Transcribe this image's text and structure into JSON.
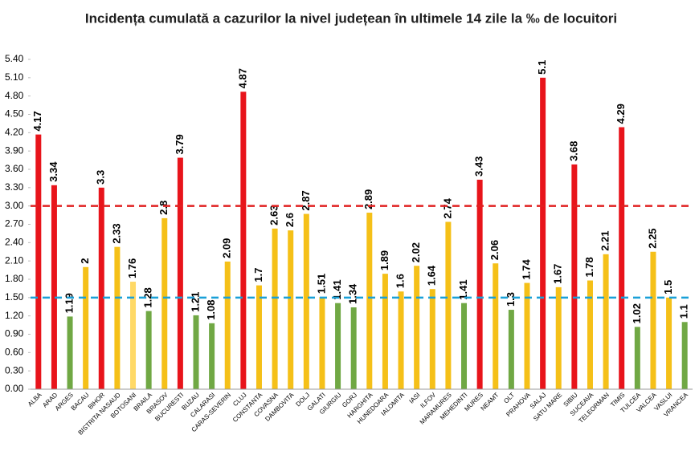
{
  "chart_data": {
    "type": "bar",
    "title": "Incidența cumulată a cazurilor la nivel județean în ultimele 14 zile la ‰ de locuitori",
    "categories": [
      "ALBA",
      "ARAD",
      "ARGES",
      "BACAU",
      "BIHOR",
      "BISTRITA NASAUD",
      "BOTOSANI",
      "BRAILA",
      "BRASOV",
      "BUCURESTI",
      "BUZAU",
      "CALARASI",
      "CARAS-SEVERIN",
      "CLUJ",
      "CONSTANTA",
      "COVASNA",
      "DAMBOVITA",
      "DOLJ",
      "GALATI",
      "GIURGIU",
      "GORJ",
      "HARGHITA",
      "HUNEDOARA",
      "IALOMITA",
      "IASI",
      "ILFOV",
      "MARAMURES",
      "MEHEDINTI",
      "MURES",
      "NEAMT",
      "OLT",
      "PRAHOVA",
      "SALAJ",
      "SATU MARE",
      "SIBIU",
      "SUCEAVA",
      "TELEORMAN",
      "TIMIS",
      "TULCEA",
      "VALCEA",
      "VASLUI",
      "VRANCEA"
    ],
    "values": [
      4.17,
      3.34,
      1.19,
      2,
      3.3,
      2.33,
      1.76,
      1.28,
      2.8,
      3.79,
      1.21,
      1.08,
      2.09,
      4.87,
      1.7,
      2.63,
      2.6,
      2.87,
      1.51,
      1.41,
      1.34,
      2.89,
      1.89,
      1.6,
      2.02,
      1.64,
      2.74,
      1.41,
      3.43,
      2.06,
      1.3,
      1.74,
      5.1,
      1.67,
      3.68,
      1.78,
      2.21,
      4.29,
      1.02,
      2.25,
      1.5,
      1.1
    ],
    "colors": [
      "#e8141b",
      "#e8141b",
      "#70a844",
      "#f5c018",
      "#e8141b",
      "#f5c018",
      "#ffd966",
      "#70a844",
      "#f5c018",
      "#e8141b",
      "#70a844",
      "#70a844",
      "#f5c018",
      "#e8141b",
      "#f5c018",
      "#f5c018",
      "#f5c018",
      "#f5c018",
      "#f5c018",
      "#70a844",
      "#70a844",
      "#f5c018",
      "#f5c018",
      "#f5c018",
      "#f5c018",
      "#f5c018",
      "#f5c018",
      "#70a844",
      "#e8141b",
      "#f5c018",
      "#70a844",
      "#f5c018",
      "#e8141b",
      "#f5c018",
      "#e8141b",
      "#f5c018",
      "#f5c018",
      "#e8141b",
      "#70a844",
      "#f5c018",
      "#f5c018",
      "#70a844"
    ],
    "ylim": [
      0,
      5.4
    ],
    "yticks": [
      {
        "value": 0,
        "label": "0.00"
      },
      {
        "value": 0.3,
        "label": "0.30"
      },
      {
        "value": 0.6,
        "label": "0.60"
      },
      {
        "value": 0.9,
        "label": "0.90"
      },
      {
        "value": 1.2,
        "label": "1.20"
      },
      {
        "value": 1.5,
        "label": "1.50"
      },
      {
        "value": 1.8,
        "label": "1.80"
      },
      {
        "value": 2.1,
        "label": "2.10"
      },
      {
        "value": 2.4,
        "label": "2.40"
      },
      {
        "value": 2.7,
        "label": "2.70"
      },
      {
        "value": 3,
        "label": "3.00"
      },
      {
        "value": 3.3,
        "label": "3.30"
      },
      {
        "value": 3.6,
        "label": "3.60"
      },
      {
        "value": 3.9,
        "label": "3.90"
      },
      {
        "value": 4.2,
        "label": "4.20"
      },
      {
        "value": 4.5,
        "label": "4.50"
      },
      {
        "value": 4.8,
        "label": "4.80"
      },
      {
        "value": 5.1,
        "label": "5.10"
      },
      {
        "value": 5.4,
        "label": "5.40"
      }
    ],
    "reference_lines": [
      {
        "value": 3,
        "color": "#e02020"
      },
      {
        "value": 1.5,
        "color": "#1aa0d8"
      }
    ],
    "grid": false
  }
}
